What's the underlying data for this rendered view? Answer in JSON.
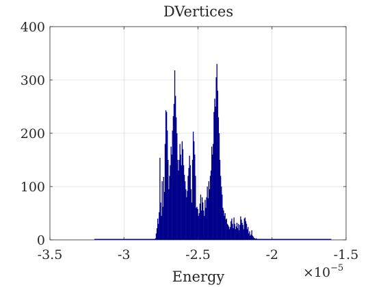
{
  "chart_data": {
    "type": "histogram",
    "title": "DVertices",
    "xlabel": "Energy",
    "ylabel": "",
    "x_exponent_label": {
      "base": "×10",
      "power": "−5"
    },
    "xlim": [
      -3.5,
      -1.5
    ],
    "ylim": [
      0,
      400
    ],
    "xticks": [
      -3.5,
      -3,
      -2.5,
      -2,
      -1.5
    ],
    "xtick_labels": [
      "-3.5",
      "-3",
      "-2.5",
      "-2",
      "-1.5"
    ],
    "yticks": [
      0,
      100,
      200,
      300,
      400
    ],
    "ytick_labels": [
      "0",
      "100",
      "200",
      "300",
      "400"
    ],
    "grid": true,
    "bar_color": "#00008b",
    "baseline_range": [
      -3.2,
      -1.6
    ],
    "bins": [
      [
        -2.79,
        3
      ],
      [
        -2.785,
        12
      ],
      [
        -2.78,
        22
      ],
      [
        -2.775,
        40
      ],
      [
        -2.77,
        30
      ],
      [
        -2.765,
        52
      ],
      [
        -2.76,
        154
      ],
      [
        -2.755,
        70
      ],
      [
        -2.75,
        45
      ],
      [
        -2.745,
        110
      ],
      [
        -2.74,
        62
      ],
      [
        -2.735,
        118
      ],
      [
        -2.73,
        90
      ],
      [
        -2.725,
        180
      ],
      [
        -2.72,
        243
      ],
      [
        -2.715,
        240
      ],
      [
        -2.71,
        205
      ],
      [
        -2.705,
        150
      ],
      [
        -2.7,
        95
      ],
      [
        -2.695,
        120
      ],
      [
        -2.69,
        140
      ],
      [
        -2.685,
        175
      ],
      [
        -2.68,
        160
      ],
      [
        -2.675,
        205
      ],
      [
        -2.67,
        232
      ],
      [
        -2.665,
        255
      ],
      [
        -2.66,
        318
      ],
      [
        -2.655,
        270
      ],
      [
        -2.65,
        230
      ],
      [
        -2.645,
        200
      ],
      [
        -2.64,
        150
      ],
      [
        -2.635,
        130
      ],
      [
        -2.63,
        150
      ],
      [
        -2.625,
        180
      ],
      [
        -2.62,
        160
      ],
      [
        -2.615,
        140
      ],
      [
        -2.61,
        185
      ],
      [
        -2.605,
        170
      ],
      [
        -2.6,
        140
      ],
      [
        -2.595,
        122
      ],
      [
        -2.59,
        110
      ],
      [
        -2.585,
        95
      ],
      [
        -2.58,
        80
      ],
      [
        -2.575,
        92
      ],
      [
        -2.57,
        120
      ],
      [
        -2.565,
        135
      ],
      [
        -2.56,
        158
      ],
      [
        -2.555,
        140
      ],
      [
        -2.55,
        95
      ],
      [
        -2.545,
        70
      ],
      [
        -2.54,
        150
      ],
      [
        -2.535,
        203
      ],
      [
        -2.53,
        185
      ],
      [
        -2.525,
        160
      ],
      [
        -2.52,
        120
      ],
      [
        -2.515,
        60
      ],
      [
        -2.51,
        62
      ],
      [
        -2.505,
        58
      ],
      [
        -2.5,
        45
      ],
      [
        -2.495,
        50
      ],
      [
        -2.49,
        68
      ],
      [
        -2.485,
        85
      ],
      [
        -2.48,
        55
      ],
      [
        -2.475,
        80
      ],
      [
        -2.47,
        70
      ],
      [
        -2.465,
        55
      ],
      [
        -2.46,
        45
      ],
      [
        -2.455,
        75
      ],
      [
        -2.45,
        60
      ],
      [
        -2.445,
        80
      ],
      [
        -2.44,
        100
      ],
      [
        -2.435,
        78
      ],
      [
        -2.43,
        110
      ],
      [
        -2.425,
        95
      ],
      [
        -2.42,
        120
      ],
      [
        -2.415,
        130
      ],
      [
        -2.41,
        175
      ],
      [
        -2.405,
        160
      ],
      [
        -2.4,
        180
      ],
      [
        -2.395,
        240
      ],
      [
        -2.39,
        265
      ],
      [
        -2.385,
        250
      ],
      [
        -2.38,
        305
      ],
      [
        -2.375,
        330
      ],
      [
        -2.37,
        280
      ],
      [
        -2.365,
        230
      ],
      [
        -2.36,
        200
      ],
      [
        -2.355,
        150
      ],
      [
        -2.35,
        120
      ],
      [
        -2.345,
        100
      ],
      [
        -2.34,
        85
      ],
      [
        -2.335,
        60
      ],
      [
        -2.33,
        55
      ],
      [
        -2.325,
        45
      ],
      [
        -2.32,
        50
      ],
      [
        -2.315,
        38
      ],
      [
        -2.31,
        40
      ],
      [
        -2.305,
        30
      ],
      [
        -2.3,
        28
      ],
      [
        -2.295,
        25
      ],
      [
        -2.29,
        20
      ],
      [
        -2.285,
        24
      ],
      [
        -2.28,
        35
      ],
      [
        -2.275,
        40
      ],
      [
        -2.27,
        30
      ],
      [
        -2.265,
        22
      ],
      [
        -2.26,
        42
      ],
      [
        -2.255,
        30
      ],
      [
        -2.25,
        20
      ],
      [
        -2.245,
        25
      ],
      [
        -2.24,
        32
      ],
      [
        -2.235,
        22
      ],
      [
        -2.23,
        30
      ],
      [
        -2.225,
        18
      ],
      [
        -2.22,
        28
      ],
      [
        -2.215,
        44
      ],
      [
        -2.21,
        38
      ],
      [
        -2.205,
        32
      ],
      [
        -2.2,
        28
      ],
      [
        -2.195,
        20
      ],
      [
        -2.19,
        40
      ],
      [
        -2.185,
        42
      ],
      [
        -2.18,
        35
      ],
      [
        -2.175,
        30
      ],
      [
        -2.17,
        20
      ],
      [
        -2.165,
        24
      ],
      [
        -2.16,
        12
      ],
      [
        -2.155,
        16
      ],
      [
        -2.15,
        8
      ],
      [
        -2.145,
        10
      ],
      [
        -2.14,
        18
      ],
      [
        -2.135,
        8
      ],
      [
        -2.13,
        6
      ],
      [
        -2.125,
        4
      ],
      [
        -2.12,
        3
      ],
      [
        -2.115,
        2
      ],
      [
        -2.11,
        3
      ],
      [
        -2.105,
        2
      ],
      [
        -2.1,
        1
      ]
    ]
  }
}
